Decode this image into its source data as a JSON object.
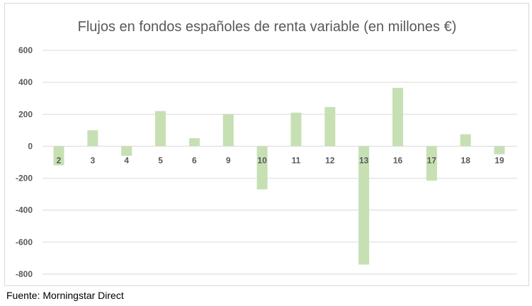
{
  "chart_data": {
    "type": "bar",
    "title": "Flujos en fondos españoles de renta variable (en millones €)",
    "xlabel": "",
    "ylabel": "",
    "categories": [
      "2",
      "3",
      "4",
      "5",
      "6",
      "9",
      "10",
      "11",
      "12",
      "13",
      "16",
      "17",
      "18",
      "19"
    ],
    "values": [
      -120,
      100,
      -60,
      220,
      50,
      200,
      -270,
      210,
      245,
      -740,
      365,
      -215,
      75,
      -50
    ],
    "ylim": [
      -800,
      600
    ],
    "yticks": [
      600,
      400,
      200,
      0,
      -200,
      -400,
      -600,
      -800
    ],
    "ytick_labels": [
      "600",
      "400",
      "200",
      "0",
      "-200",
      "-400",
      "-600",
      "-800"
    ],
    "grid": true,
    "legend": "none",
    "bar_color": "#c6e0b4",
    "grid_color": "#d9d9d9"
  },
  "footer": {
    "source": "Fuente: Morningstar Direct"
  }
}
